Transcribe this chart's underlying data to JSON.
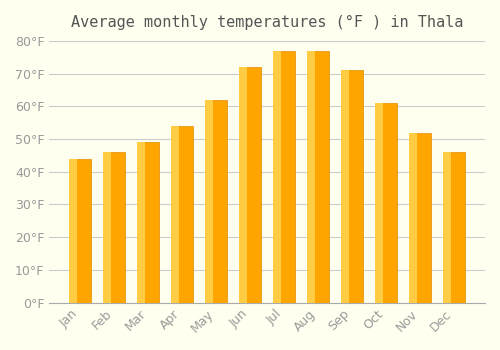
{
  "title": "Average monthly temperatures (°F ) in Thala",
  "months": [
    "Jan",
    "Feb",
    "Mar",
    "Apr",
    "May",
    "Jun",
    "Jul",
    "Aug",
    "Sep",
    "Oct",
    "Nov",
    "Dec"
  ],
  "values": [
    44,
    46,
    49,
    54,
    62,
    72,
    77,
    77,
    71,
    61,
    52,
    46
  ],
  "bar_color": "#FFA500",
  "bar_edge_color": "#E08C00",
  "bar_gradient_top": "#FFCC44",
  "ylim": [
    0,
    80
  ],
  "yticks": [
    0,
    10,
    20,
    30,
    40,
    50,
    60,
    70,
    80
  ],
  "ytick_labels": [
    "0°F",
    "10°F",
    "20°F",
    "30°F",
    "40°F",
    "50°F",
    "60°F",
    "70°F",
    "80°F"
  ],
  "background_color": "#FFFFF0",
  "grid_color": "#CCCCCC",
  "title_fontsize": 11,
  "tick_fontsize": 9,
  "tick_label_color": "#999999"
}
